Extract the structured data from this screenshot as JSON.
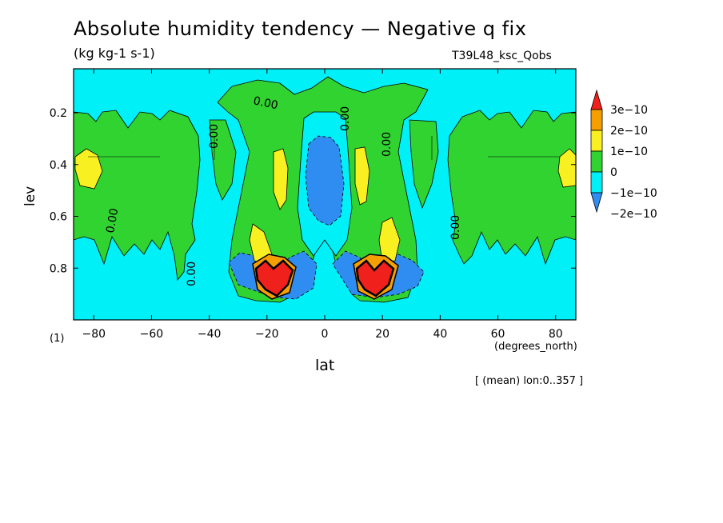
{
  "chart_data": {
    "type": "heatmap",
    "title": "Absolute humidity tendency — Negative q fix",
    "units": "(kg kg-1 s-1)",
    "run_label": "T39L48_ksc_Qobs",
    "xlabel": "lat",
    "x_units": "(degrees_north)",
    "ylabel": "lev",
    "y_units": "(1)",
    "footnote": "[ (mean) lon:0..357 ]",
    "xlim": [
      -87,
      87
    ],
    "ylim": [
      1.0,
      0.03
    ],
    "x_ticks": [
      -80,
      -60,
      -40,
      -20,
      0,
      20,
      40,
      60,
      80
    ],
    "x_tick_labels": [
      "−80",
      "−60",
      "−40",
      "−20",
      "0",
      "20",
      "40",
      "60",
      "80"
    ],
    "y_ticks": [
      0.2,
      0.4,
      0.6,
      0.8
    ],
    "y_tick_labels": [
      "0.2",
      "0.4",
      "0.6",
      "0.8"
    ],
    "contour_label": "0.00",
    "colorbar": {
      "levels": [
        "3e−10",
        "2e−10",
        "1e−10",
        "0",
        "−1e−10",
        "−2e−10"
      ],
      "colors": [
        "#f0201c",
        "#f5a000",
        "#f8f020",
        "#31d331",
        "#00f0f8",
        "#2f8cf0"
      ]
    },
    "background_color": "#00f0f8",
    "regions": [
      {
        "level": "0..1e-10",
        "lat": [
          -87,
          -45
        ],
        "lev": [
          0.17,
          0.82
        ]
      },
      {
        "level": "0..1e-10",
        "lat": [
          -40,
          40
        ],
        "lev": [
          0.07,
          0.9
        ]
      },
      {
        "level": "0..1e-10",
        "lat": [
          43,
          87
        ],
        "lev": [
          0.17,
          0.82
        ]
      },
      {
        "level": "1e-10..2e-10",
        "lat": [
          -85,
          -78
        ],
        "lev": [
          0.32,
          0.46
        ]
      },
      {
        "level": "1e-10..2e-10",
        "lat": [
          78,
          86
        ],
        "lev": [
          0.32,
          0.46
        ]
      },
      {
        "level": "-1e-10..-2e-10",
        "lat": [
          -12,
          12
        ],
        "lev": [
          0.3,
          0.55
        ]
      },
      {
        "level": "<-2e-10",
        "lat": [
          -28,
          -10
        ],
        "lev": [
          0.76,
          0.88
        ]
      },
      {
        "level": "<-2e-10",
        "lat": [
          4,
          28
        ],
        "lev": [
          0.76,
          0.88
        ]
      },
      {
        "level": ">3e-10",
        "lat": [
          -25,
          -16
        ],
        "lev": [
          0.78,
          0.9
        ]
      },
      {
        "level": ">3e-10",
        "lat": [
          12,
          22
        ],
        "lev": [
          0.78,
          0.9
        ]
      }
    ]
  }
}
